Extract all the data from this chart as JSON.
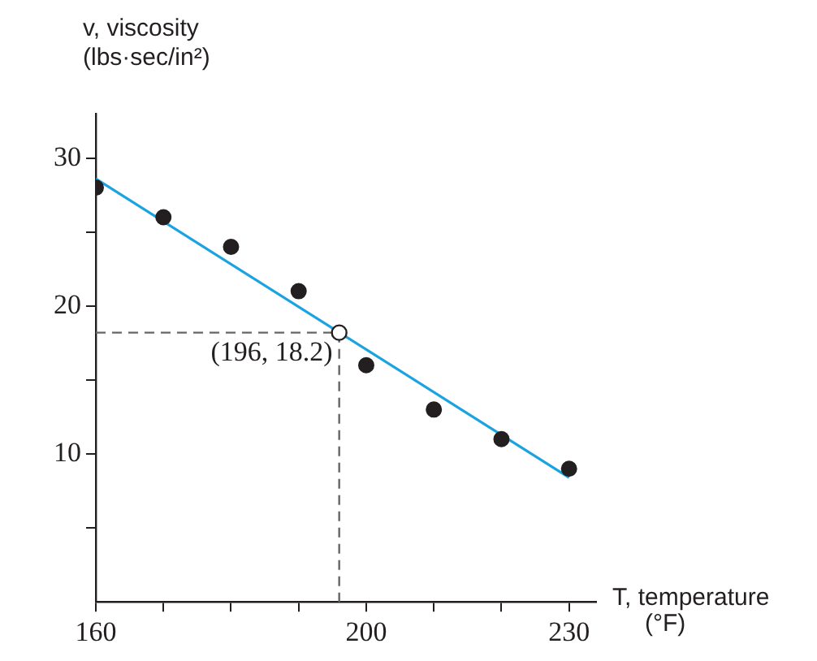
{
  "chart_data": {
    "type": "scatter",
    "xlabel": "T, temperature (°F)",
    "ylabel": "v, viscosity (lbs·sec/in²)",
    "xlim": [
      160,
      234
    ],
    "xticks": [
      160,
      {
        "value": 170,
        "label": null
      },
      {
        "value": 180,
        "label": null
      },
      {
        "value": 190,
        "label": null
      },
      200,
      {
        "value": 210,
        "label": null
      },
      {
        "value": 220,
        "label": null
      },
      230
    ],
    "ylim": [
      0,
      33
    ],
    "yticks": [
      {
        "value": 5,
        "label": null
      },
      10,
      {
        "value": 15,
        "label": null
      },
      20,
      {
        "value": 25,
        "label": null
      },
      30
    ],
    "grid": false,
    "legend": false,
    "series": [
      {
        "type": "scatter",
        "color": "#231f20",
        "marker": "circle",
        "x": [
          160,
          170,
          180,
          190,
          200,
          210,
          220,
          230
        ],
        "values": [
          28,
          26,
          24,
          21,
          16,
          13,
          11,
          9
        ]
      },
      {
        "type": "line",
        "color": "#1aa3e0",
        "marker": "none",
        "line_style": "solid",
        "x": [
          160,
          230
        ],
        "values": [
          28.6,
          8.4
        ]
      }
    ],
    "annotations": [
      {
        "text": "(196, 18.2)",
        "x": 196,
        "y": 18.2
      }
    ]
  }
}
